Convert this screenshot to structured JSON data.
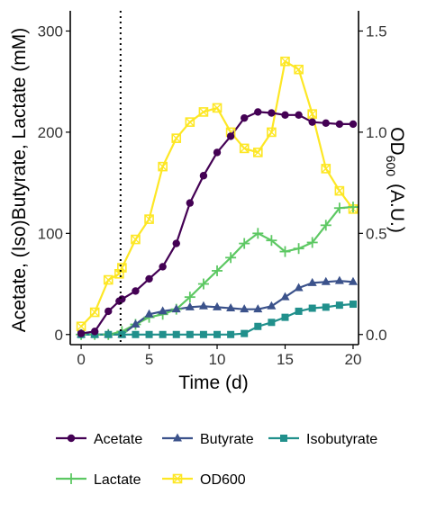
{
  "chart_data": {
    "type": "line",
    "xlabel": "Time (d)",
    "ylabel": "Acetate, (Iso)Butyrate, Lactate (mM)",
    "ylabel_right_main": "OD",
    "ylabel_right_sub": "600",
    "ylabel_right_unit": "(A.U.)",
    "xlim": [
      -0.8,
      20.4
    ],
    "ylim": [
      -10,
      320
    ],
    "ylim_right": [
      -0.05,
      1.6
    ],
    "x_ticks": [
      0,
      5,
      10,
      15,
      20
    ],
    "x_tick_labels": [
      "0",
      "5",
      "10",
      "15",
      "20"
    ],
    "y_ticks": [
      0,
      100,
      200,
      300
    ],
    "y_tick_labels": [
      "0",
      "100",
      "200",
      "300"
    ],
    "y_right_ticks": [
      0.0,
      0.5,
      1.0,
      1.5
    ],
    "y_right_tick_labels": [
      "0.0",
      "0.5",
      "1.0",
      "1.5"
    ],
    "vertical_marker_x": 2.9,
    "grid": false,
    "legend_position": "bottom",
    "series": [
      {
        "name": "Acetate",
        "axis": "left",
        "color": "#440154",
        "marker": "circle",
        "x": [
          0,
          1,
          2,
          2.8,
          3,
          4,
          5,
          6,
          7,
          8,
          9,
          10,
          11,
          12,
          13,
          14,
          15,
          16,
          17,
          18,
          19,
          20
        ],
        "y": [
          1,
          3,
          23,
          33,
          35,
          43,
          55,
          67,
          90,
          130,
          157,
          180,
          196,
          214,
          220,
          219,
          217,
          217,
          210,
          209,
          208,
          208
        ]
      },
      {
        "name": "Butyrate",
        "axis": "left",
        "color": "#3B528B",
        "marker": "triangle",
        "x": [
          0,
          1,
          2,
          3,
          4,
          5,
          6,
          7,
          8,
          9,
          10,
          11,
          12,
          13,
          14,
          15,
          16,
          17,
          18,
          19,
          20
        ],
        "y": [
          0,
          0,
          0,
          0,
          10,
          20,
          23,
          25,
          27,
          28,
          27,
          26,
          25,
          25,
          28,
          37,
          46,
          51,
          52,
          53,
          52
        ]
      },
      {
        "name": "Isobutyrate",
        "axis": "left",
        "color": "#21908C",
        "marker": "square",
        "x": [
          0,
          1,
          2,
          3,
          4,
          5,
          6,
          7,
          8,
          9,
          10,
          11,
          12,
          13,
          14,
          15,
          16,
          17,
          18,
          19,
          20
        ],
        "y": [
          0,
          0,
          0,
          0,
          0,
          0,
          0,
          0,
          0,
          0,
          0,
          0,
          1,
          8,
          12,
          17,
          23,
          26,
          27,
          29,
          30
        ]
      },
      {
        "name": "Lactate",
        "axis": "left",
        "color": "#5DC863",
        "marker": "plus",
        "x": [
          0,
          1,
          2,
          3,
          4,
          5,
          6,
          7,
          8,
          9,
          10,
          11,
          12,
          13,
          14,
          15,
          16,
          17,
          18,
          19,
          20
        ],
        "y": [
          0,
          0,
          0,
          3,
          10,
          17,
          20,
          25,
          37,
          50,
          63,
          76,
          90,
          100,
          93,
          82,
          85,
          91,
          108,
          125,
          126
        ]
      },
      {
        "name": "OD600",
        "axis": "right",
        "color": "#FDE725",
        "marker": "square-x",
        "x": [
          0,
          1,
          2,
          2.8,
          3,
          4,
          5,
          6,
          7,
          8,
          9,
          10,
          11,
          12,
          13,
          14,
          15,
          16,
          17,
          18,
          19,
          20
        ],
        "y": [
          0.04,
          0.11,
          0.27,
          0.3,
          0.33,
          0.47,
          0.57,
          0.83,
          0.97,
          1.05,
          1.1,
          1.12,
          1.0,
          0.92,
          0.9,
          1.0,
          1.35,
          1.31,
          1.09,
          0.82,
          0.71,
          0.62
        ]
      }
    ],
    "legend": [
      [
        "Acetate",
        "Butyrate",
        "Isobutyrate"
      ],
      [
        "Lactate",
        "OD600"
      ]
    ]
  }
}
